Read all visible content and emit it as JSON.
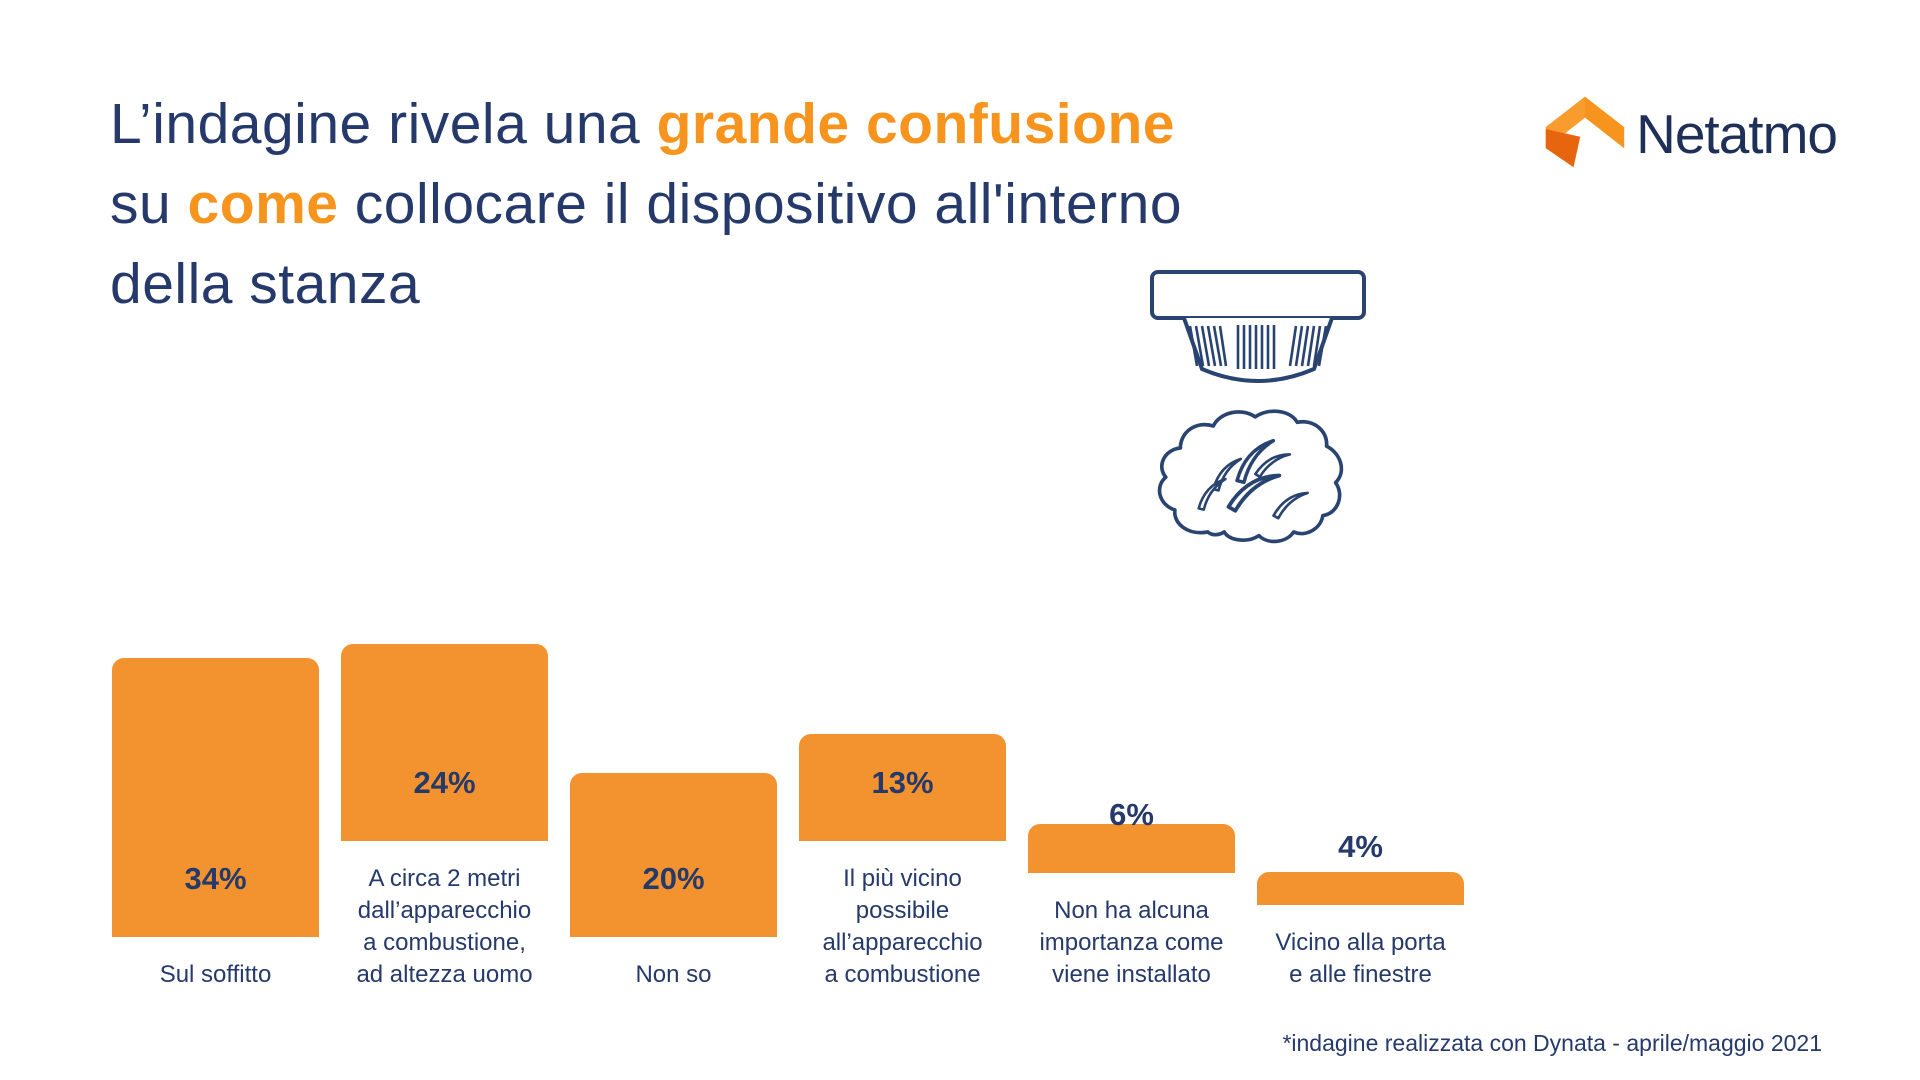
{
  "title": {
    "line1_normal": "L’indagine rivela una ",
    "line1_accent": "grande confusione",
    "line2_prefix": "su ",
    "line2_accent": "come",
    "line2_suffix": " collocare il dispositivo all'interno",
    "line3": "della stanza"
  },
  "logo": {
    "text": "Netatmo"
  },
  "icons": {
    "logo_mark": "netatmo-house-icon",
    "detector": "smoke-detector-icon",
    "brain": "brain-icon"
  },
  "colors": {
    "navy": "#25396B",
    "accent_orange": "#F7941D",
    "bar_orange": "#F2932F",
    "background": "#FFFFFF"
  },
  "footnote": "*indagine realizzata con Dynata - aprile/maggio 2021",
  "chart_data": {
    "type": "bar",
    "title": "Dove collocare il dispositivo all'interno della stanza",
    "categories": [
      "Sul soffitto",
      "A circa 2 metri dall’apparecchio a combustione, ad altezza uomo",
      "Non so",
      "Il più vicino possibile all’apparecchio a combustione",
      "Non ha alcuna importanza come viene installato",
      "Vicino alla porta e alle finestre"
    ],
    "category_lines": [
      [
        "Sul soffitto"
      ],
      [
        "A circa 2 metri",
        "dall’apparecchio",
        "a combustione,",
        "ad altezza uomo"
      ],
      [
        "Non so"
      ],
      [
        "Il più vicino",
        "possibile",
        "all’apparecchio",
        "a combustione"
      ],
      [
        "Non ha alcuna",
        "importanza come",
        "viene installato"
      ],
      [
        "Vicino alla porta",
        "e alle finestre"
      ]
    ],
    "values": [
      34,
      24,
      20,
      13,
      6,
      4
    ],
    "value_labels": [
      "34%",
      "24%",
      "20%",
      "13%",
      "6%",
      "4%"
    ],
    "xlabel": "",
    "ylabel": "",
    "ylim": [
      0,
      34
    ],
    "grid": false,
    "legend": false,
    "bar_color": "#F2932F",
    "label_color": "#25396B"
  }
}
